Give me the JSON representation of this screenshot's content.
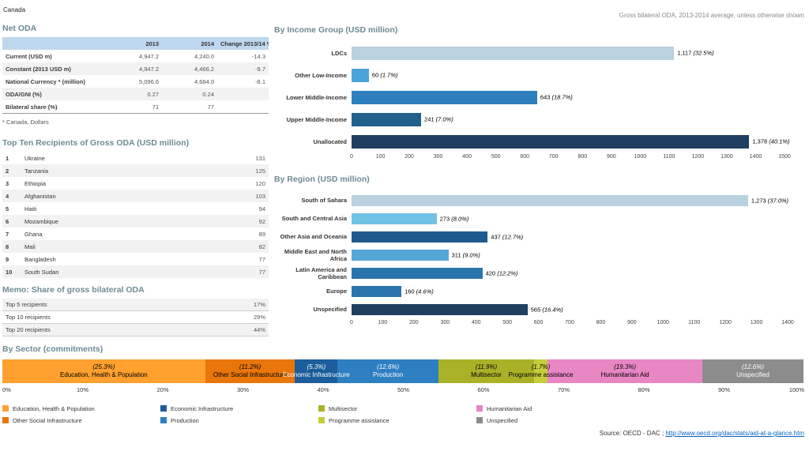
{
  "page": {
    "country": "Canada",
    "subtitle": "Gross bilateral ODA, 2013-2014 average, unless otherwise shown",
    "source_prefix": "Source: OECD - DAC ; ",
    "source_link": "http://www.oecd.org/dac/stats/aid-at-a-glance.htm"
  },
  "net_oda": {
    "title": "Net ODA",
    "columns": [
      "",
      "2013",
      "2014",
      "Change 2013/14 %"
    ],
    "rows": [
      {
        "label": "Current (USD m)",
        "v2013": "4,947.2",
        "v2014": "4,240.0",
        "change": "-14.3"
      },
      {
        "label": "Constant (2013 USD m)",
        "v2013": "4,947.2",
        "v2014": "4,466.2",
        "change": "-9.7"
      },
      {
        "label": "National Currency * (million)",
        "v2013": "5,096.6",
        "v2014": "4,684.0",
        "change": "-8.1"
      },
      {
        "label": "ODA/GNI (%)",
        "v2013": "0.27",
        "v2014": "0.24",
        "change": ""
      },
      {
        "label": "Bilateral share (%)",
        "v2013": "71",
        "v2014": "77",
        "change": ""
      }
    ],
    "footnote": "* Canada, Dollars"
  },
  "top_recipients": {
    "title": "Top Ten Recipients of Gross ODA (USD million)",
    "rows": [
      {
        "rank": "1",
        "name": "Ukraine",
        "value": "131"
      },
      {
        "rank": "2",
        "name": "Tanzania",
        "value": "125"
      },
      {
        "rank": "3",
        "name": "Ethiopia",
        "value": "120"
      },
      {
        "rank": "4",
        "name": "Afghanistan",
        "value": "103"
      },
      {
        "rank": "5",
        "name": "Haiti",
        "value": "94"
      },
      {
        "rank": "6",
        "name": "Mozambique",
        "value": "92"
      },
      {
        "rank": "7",
        "name": "Ghana",
        "value": "89"
      },
      {
        "rank": "8",
        "name": "Mali",
        "value": "82"
      },
      {
        "rank": "9",
        "name": "Bangladesh",
        "value": "77"
      },
      {
        "rank": "10",
        "name": "South Sudan",
        "value": "77"
      }
    ]
  },
  "memo": {
    "title": "Memo: Share of gross bilateral ODA",
    "rows": [
      {
        "label": "Top 5 recipients",
        "value": "17%"
      },
      {
        "label": "Top 10 recipients",
        "value": "29%"
      },
      {
        "label": "Top 20 recipients",
        "value": "44%"
      }
    ]
  },
  "chart_data": [
    {
      "type": "bar",
      "orientation": "horizontal",
      "title": "By Income Group (USD million)",
      "categories": [
        "LDCs",
        "Other Low-Income",
        "Lower Middle-Income",
        "Upper Middle-Income",
        "Unallocated"
      ],
      "values": [
        1117,
        60,
        643,
        241,
        1378
      ],
      "value_texts": [
        "1,117",
        "60",
        "643",
        "241",
        "1,378"
      ],
      "pct_texts": [
        "(32.5%)",
        "(1.7%)",
        "(18.7%)",
        "(7.0%)",
        "(40.1%)"
      ],
      "bar_colors": [
        "#b9d1e0",
        "#4ba3d9",
        "#2e7fbd",
        "#21618c",
        "#203e5f"
      ],
      "xlim": [
        0,
        1500
      ],
      "xtick_step": 100,
      "grid": false,
      "legend_position": "none"
    },
    {
      "type": "bar",
      "orientation": "horizontal",
      "title": "By Region (USD million)",
      "categories": [
        "South of Sahara",
        "South and Central Asia",
        "Other Asia and Oceania",
        "Middle East and North Africa",
        "Latin America and Caribbean",
        "Europe",
        "Unspecified"
      ],
      "values": [
        1273,
        273,
        437,
        311,
        420,
        160,
        565
      ],
      "value_texts": [
        "1,273",
        "273",
        "437",
        "311",
        "420",
        "160",
        "565"
      ],
      "pct_texts": [
        "(37.0%)",
        "(8.0%)",
        "(12.7%)",
        "(9.0%)",
        "(12.2%)",
        "(4.6%)",
        "(16.4%)"
      ],
      "bar_colors": [
        "#b9d1e0",
        "#72c2e6",
        "#1f5a8c",
        "#56a6d7",
        "#2a74ad",
        "#2a74ad",
        "#203e5f"
      ],
      "xlim": [
        0,
        1400
      ],
      "xtick_step": 100,
      "grid": false,
      "legend_position": "none"
    },
    {
      "type": "stacked-bar",
      "orientation": "horizontal",
      "title": "By Sector (commitments)",
      "segments": [
        {
          "label": "Education, Health & Population",
          "pct": 25.3,
          "pct_text": "(25.3%)",
          "color": "#ffa02f",
          "text_color": "#000000"
        },
        {
          "label": "Other Social Infrastructure",
          "pct": 11.2,
          "pct_text": "(11.2%)",
          "color": "#e8760a",
          "text_color": "#000000"
        },
        {
          "label": "Economic Infrastructure",
          "pct": 5.3,
          "pct_text": "(5.3%)",
          "color": "#1b5e9b",
          "text_color": "#ffffff"
        },
        {
          "label": "Production",
          "pct": 12.6,
          "pct_text": "(12.6%)",
          "color": "#2e7fc1",
          "text_color": "#ffffff"
        },
        {
          "label": "Multisector",
          "pct": 11.9,
          "pct_text": "(11.9%)",
          "color": "#a9b226",
          "text_color": "#000000"
        },
        {
          "label": "Programme assistance",
          "pct": 1.7,
          "pct_text": "(1.7%)",
          "color": "#c4ce3b",
          "text_color": "#000000"
        },
        {
          "label": "Humanitarian Aid",
          "pct": 19.3,
          "pct_text": "(19.3%)",
          "color": "#e886c4",
          "text_color": "#000000"
        },
        {
          "label": "Unspecified",
          "pct": 12.6,
          "pct_text": "(12.6%)",
          "color": "#8c8c8c",
          "text_color": "#ffffff"
        }
      ],
      "xticks": [
        "0%",
        "10%",
        "20%",
        "30%",
        "40%",
        "50%",
        "60%",
        "70%",
        "80%",
        "90%",
        "100%"
      ]
    }
  ],
  "sector_legend": {
    "items": [
      {
        "label": "Education, Health & Population",
        "color": "#ffa02f"
      },
      {
        "label": "Other Social Infrastructure",
        "color": "#e8760a"
      },
      {
        "label": "Economic Infrastructure",
        "color": "#1b5e9b"
      },
      {
        "label": "Production",
        "color": "#2e7fc1"
      },
      {
        "label": "Multisector",
        "color": "#a9b226"
      },
      {
        "label": "Programme assistance",
        "color": "#c4ce3b"
      },
      {
        "label": "Humanitarian Aid",
        "color": "#e886c4"
      },
      {
        "label": "Unspecified",
        "color": "#8c8c8c"
      }
    ]
  }
}
